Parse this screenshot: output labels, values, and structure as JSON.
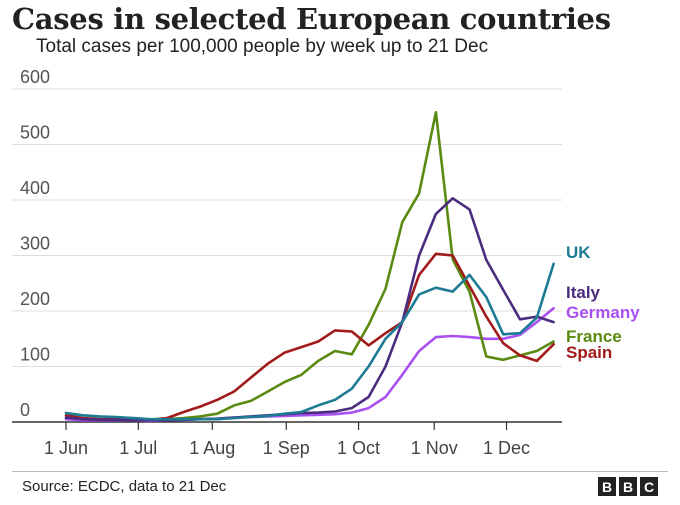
{
  "chart_data": {
    "type": "line",
    "title": "Cases in selected European countries",
    "subtitle": "Total cases per 100,000 people by week up to 21 Dec",
    "ylim": [
      0,
      600
    ],
    "yticks": [
      0,
      100,
      200,
      300,
      400,
      500,
      600
    ],
    "xlim": [
      0,
      29.5
    ],
    "xticks": [
      {
        "label": "1 Jun",
        "x": 0
      },
      {
        "label": "1 Jul",
        "x": 4.3
      },
      {
        "label": "1 Aug",
        "x": 8.7
      },
      {
        "label": "1 Sep",
        "x": 13.1
      },
      {
        "label": "1 Oct",
        "x": 17.4
      },
      {
        "label": "1 Nov",
        "x": 21.9
      },
      {
        "label": "1 Dec",
        "x": 26.2
      }
    ],
    "grid": true,
    "series": [
      {
        "name": "UK",
        "color": "#1d7b94",
        "x": [
          0,
          1,
          2,
          3,
          4,
          5,
          6,
          7,
          8,
          9,
          10,
          11,
          12,
          13,
          14,
          15,
          16,
          17,
          18,
          19,
          20,
          21,
          22,
          23,
          24,
          25,
          26,
          27,
          28,
          29
        ],
        "values": [
          16,
          12,
          10,
          9,
          7,
          5,
          5,
          5,
          5,
          5,
          7,
          9,
          11,
          15,
          18,
          30,
          40,
          60,
          100,
          150,
          180,
          230,
          242,
          235,
          265,
          225,
          158,
          160,
          188,
          285
        ]
      },
      {
        "name": "Italy",
        "color": "#4b2c7e",
        "x": [
          0,
          1,
          2,
          3,
          4,
          5,
          6,
          7,
          8,
          9,
          10,
          11,
          12,
          13,
          14,
          15,
          16,
          17,
          18,
          19,
          20,
          21,
          22,
          23,
          24,
          25,
          26,
          27,
          28,
          29
        ],
        "values": [
          8,
          5,
          4,
          4,
          3,
          3,
          3,
          4,
          5,
          6,
          8,
          10,
          12,
          14,
          16,
          17,
          19,
          25,
          45,
          100,
          180,
          300,
          375,
          403,
          383,
          292,
          238,
          185,
          190,
          180
        ]
      },
      {
        "name": "Germany",
        "color": "#a950f2",
        "x": [
          0,
          1,
          2,
          3,
          4,
          5,
          6,
          7,
          8,
          9,
          10,
          11,
          12,
          13,
          14,
          15,
          16,
          17,
          18,
          19,
          20,
          21,
          22,
          23,
          24,
          25,
          26,
          27,
          28,
          29
        ],
        "values": [
          5,
          3,
          3,
          3,
          3,
          2,
          3,
          4,
          5,
          6,
          8,
          9,
          10,
          11,
          12,
          13,
          14,
          17,
          25,
          45,
          85,
          128,
          153,
          155,
          153,
          150,
          150,
          157,
          180,
          205
        ]
      },
      {
        "name": "France",
        "color": "#5a8a12",
        "x": [
          0,
          1,
          2,
          3,
          4,
          5,
          6,
          7,
          8,
          9,
          10,
          11,
          12,
          13,
          14,
          15,
          16,
          17,
          18,
          19,
          20,
          21,
          22,
          23,
          24,
          25,
          26,
          27,
          28,
          29
        ],
        "values": [
          8,
          6,
          5,
          5,
          4,
          4,
          5,
          7,
          10,
          15,
          30,
          38,
          55,
          72,
          85,
          110,
          128,
          122,
          175,
          240,
          360,
          412,
          558,
          293,
          235,
          118,
          112,
          120,
          128,
          145
        ]
      },
      {
        "name": "Spain",
        "color": "#a21b1b",
        "x": [
          0,
          1,
          2,
          3,
          4,
          5,
          6,
          7,
          8,
          9,
          10,
          11,
          12,
          13,
          14,
          15,
          16,
          17,
          18,
          19,
          20,
          21,
          22,
          23,
          24,
          25,
          26,
          27,
          28,
          29
        ],
        "values": [
          12,
          7,
          5,
          5,
          5,
          4,
          7,
          18,
          28,
          40,
          55,
          80,
          105,
          125,
          135,
          145,
          165,
          163,
          138,
          160,
          180,
          265,
          303,
          300,
          245,
          190,
          142,
          120,
          110,
          140
        ]
      }
    ]
  },
  "footer": {
    "source": "Source: ECDC, data to 21 Dec",
    "logo_letters": [
      "B",
      "B",
      "C"
    ]
  }
}
